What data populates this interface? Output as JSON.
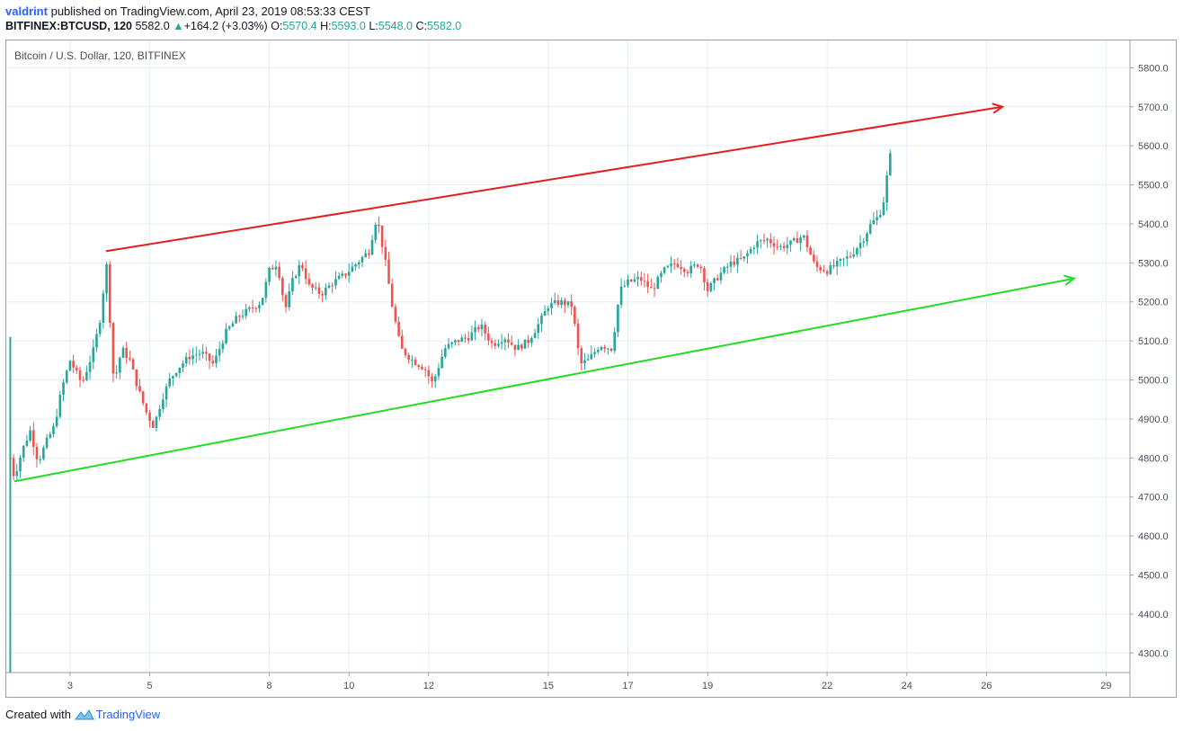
{
  "header": {
    "author": "valdrint",
    "published_text": "published on TradingView.com, April 23, 2019 08:53:33 CEST",
    "symbol": "BITFINEX:BTCUSD, 120",
    "last": "5582.0",
    "change": "+164.2 (+3.03%)",
    "o_label": "O:",
    "o": "5570.4",
    "h_label": "H:",
    "h": "5593.0",
    "l_label": "L:",
    "l": "5548.0",
    "c_label": "C:",
    "c": "5582.0"
  },
  "footer": {
    "created_with": "Created with",
    "brand": "TradingView"
  },
  "colors": {
    "up": "#26a69a",
    "down": "#ef5350",
    "upper_line": "#e31e1e",
    "lower_line": "#22dd22",
    "grid": "#e3eef5"
  },
  "chart_data": {
    "type": "candlestick",
    "title": "Bitcoin / U.S. Dollar, 120, BITFINEX",
    "x_ticks": [
      "3",
      "5",
      "8",
      "10",
      "12",
      "15",
      "17",
      "19",
      "22",
      "24",
      "26",
      "29"
    ],
    "y_ticks": [
      "4300.0",
      "4400.0",
      "4500.0",
      "4600.0",
      "4700.0",
      "4800.0",
      "4900.0",
      "5000.0",
      "5100.0",
      "5200.0",
      "5300.0",
      "5400.0",
      "5500.0",
      "5600.0",
      "5700.0",
      "5800.0"
    ],
    "ylim": [
      4250,
      5870
    ],
    "xlim_days": [
      1.4,
      29.6
    ],
    "grid": true,
    "close_path": [
      [
        1.5,
        4800
      ],
      [
        1.6,
        4750
      ],
      [
        1.8,
        4820
      ],
      [
        2.0,
        4870
      ],
      [
        2.2,
        4790
      ],
      [
        2.4,
        4840
      ],
      [
        2.6,
        4880
      ],
      [
        2.8,
        4980
      ],
      [
        3.0,
        5050
      ],
      [
        3.3,
        4990
      ],
      [
        3.6,
        5080
      ],
      [
        3.8,
        5180
      ],
      [
        3.9,
        5320
      ],
      [
        4.1,
        4990
      ],
      [
        4.3,
        5080
      ],
      [
        4.5,
        5050
      ],
      [
        4.7,
        4980
      ],
      [
        4.9,
        4920
      ],
      [
        5.1,
        4880
      ],
      [
        5.3,
        4950
      ],
      [
        5.5,
        5000
      ],
      [
        5.7,
        5030
      ],
      [
        6.0,
        5060
      ],
      [
        6.3,
        5070
      ],
      [
        6.6,
        5040
      ],
      [
        6.9,
        5120
      ],
      [
        7.2,
        5160
      ],
      [
        7.5,
        5180
      ],
      [
        7.8,
        5200
      ],
      [
        8.0,
        5280
      ],
      [
        8.2,
        5300
      ],
      [
        8.4,
        5180
      ],
      [
        8.6,
        5260
      ],
      [
        8.8,
        5300
      ],
      [
        9.0,
        5240
      ],
      [
        9.3,
        5220
      ],
      [
        9.6,
        5250
      ],
      [
        9.9,
        5270
      ],
      [
        10.2,
        5300
      ],
      [
        10.5,
        5330
      ],
      [
        10.7,
        5420
      ],
      [
        10.9,
        5310
      ],
      [
        11.1,
        5180
      ],
      [
        11.3,
        5080
      ],
      [
        11.6,
        5050
      ],
      [
        11.9,
        5030
      ],
      [
        12.1,
        4990
      ],
      [
        12.4,
        5080
      ],
      [
        12.7,
        5100
      ],
      [
        13.0,
        5110
      ],
      [
        13.3,
        5140
      ],
      [
        13.6,
        5090
      ],
      [
        13.9,
        5110
      ],
      [
        14.2,
        5080
      ],
      [
        14.5,
        5100
      ],
      [
        14.8,
        5150
      ],
      [
        15.0,
        5190
      ],
      [
        15.3,
        5200
      ],
      [
        15.6,
        5190
      ],
      [
        15.8,
        5040
      ],
      [
        16.0,
        5050
      ],
      [
        16.3,
        5090
      ],
      [
        16.6,
        5080
      ],
      [
        16.8,
        5230
      ],
      [
        17.0,
        5250
      ],
      [
        17.3,
        5260
      ],
      [
        17.6,
        5230
      ],
      [
        17.9,
        5280
      ],
      [
        18.2,
        5300
      ],
      [
        18.5,
        5280
      ],
      [
        18.8,
        5300
      ],
      [
        19.0,
        5230
      ],
      [
        19.3,
        5270
      ],
      [
        19.6,
        5300
      ],
      [
        19.9,
        5310
      ],
      [
        20.2,
        5350
      ],
      [
        20.5,
        5360
      ],
      [
        20.8,
        5340
      ],
      [
        21.1,
        5350
      ],
      [
        21.4,
        5370
      ],
      [
        21.7,
        5290
      ],
      [
        22.0,
        5280
      ],
      [
        22.3,
        5300
      ],
      [
        22.6,
        5320
      ],
      [
        22.9,
        5360
      ],
      [
        23.1,
        5400
      ],
      [
        23.3,
        5420
      ],
      [
        23.45,
        5470
      ],
      [
        23.55,
        5570
      ],
      [
        23.65,
        5582
      ]
    ],
    "trend_lines": [
      {
        "color": "upper_line",
        "from": [
          3.9,
          5330
        ],
        "to": [
          26.4,
          5700
        ],
        "arrow": true
      },
      {
        "color": "lower_line",
        "from": [
          1.6,
          4740
        ],
        "to": [
          28.2,
          5260
        ],
        "arrow": true
      }
    ]
  }
}
